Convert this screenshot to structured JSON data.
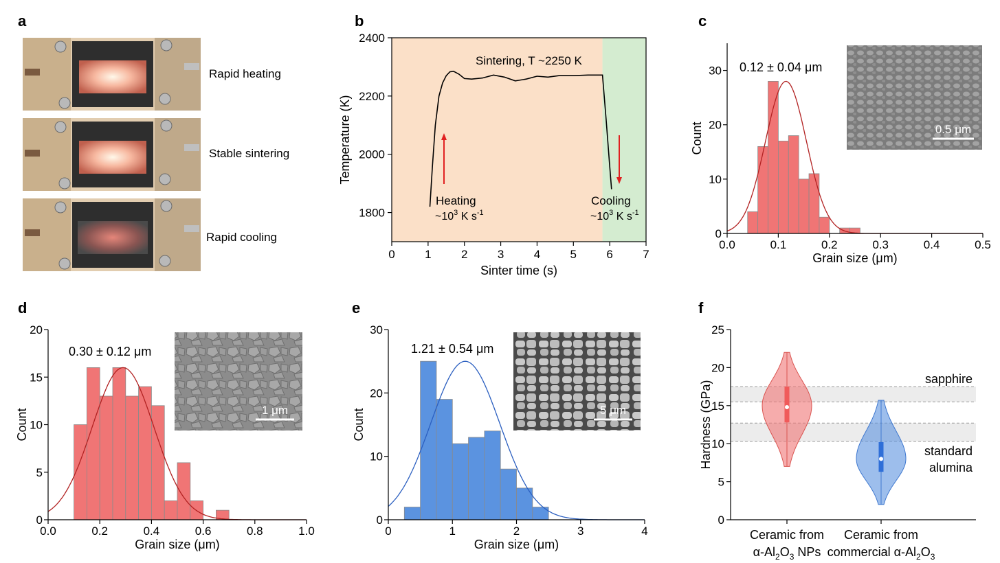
{
  "panel_labels": [
    "a",
    "b",
    "c",
    "d",
    "e",
    "f"
  ],
  "colors": {
    "red_bar": "#f07575",
    "red_line": "#b22222",
    "blue_bar": "#5b93e0",
    "blue_line": "#2b5fc0",
    "heat_bg": "#fbe0c8",
    "cool_bg": "#d4ecd0",
    "arrow": "#e02020",
    "band": "#e6e6e6"
  },
  "panel_a": {
    "photos": [
      {
        "caption": "Rapid heating",
        "glow": "bright"
      },
      {
        "caption": "Stable sintering",
        "glow": "bright"
      },
      {
        "caption": "Rapid cooling",
        "glow": "dim"
      }
    ]
  },
  "chart_data": [
    {
      "id": "b",
      "type": "line",
      "title": "",
      "xlabel": "Sinter time (s)",
      "ylabel": "Temperature (K)",
      "xlim": [
        0,
        7
      ],
      "ylim": [
        1700,
        2400
      ],
      "xticks": [
        0,
        1,
        2,
        3,
        4,
        5,
        6,
        7
      ],
      "yticks": [
        1800,
        2000,
        2200,
        2400
      ],
      "regions": [
        {
          "name": "heating",
          "from": 0,
          "to": 5.8
        },
        {
          "name": "cooling",
          "from": 5.8,
          "to": 7
        }
      ],
      "series": [
        {
          "name": "temperature",
          "x": [
            1.05,
            1.12,
            1.2,
            1.3,
            1.4,
            1.5,
            1.6,
            1.7,
            1.85,
            2.0,
            2.2,
            2.5,
            2.8,
            3.1,
            3.4,
            3.7,
            4.0,
            4.3,
            4.6,
            5.0,
            5.4,
            5.8,
            5.9,
            6.0,
            6.05
          ],
          "y": [
            1820,
            1960,
            2100,
            2200,
            2245,
            2270,
            2283,
            2285,
            2275,
            2260,
            2258,
            2262,
            2272,
            2265,
            2252,
            2258,
            2268,
            2265,
            2270,
            2270,
            2272,
            2272,
            2120,
            1960,
            1880
          ]
        }
      ],
      "annotations": {
        "sintering": "Sintering, T ~2250 K",
        "heating": "Heating",
        "cooling": "Cooling",
        "rate_prefix": "~10",
        "rate_exp": "3",
        "rate_unit": " K s",
        "rate_unit_exp": "-1"
      }
    },
    {
      "id": "c",
      "type": "bar",
      "xlabel": "Grain size (μm)",
      "ylabel": "Count",
      "xlim": [
        0,
        0.5
      ],
      "ylim": [
        0,
        35
      ],
      "xticks": [
        0.0,
        0.1,
        0.2,
        0.3,
        0.4,
        0.5
      ],
      "yticks": [
        0,
        10,
        20,
        30
      ],
      "bin_width": 0.02,
      "bin_starts": [
        0.04,
        0.06,
        0.08,
        0.1,
        0.12,
        0.14,
        0.16,
        0.18,
        0.2,
        0.22,
        0.24
      ],
      "values": [
        4,
        16,
        28,
        17,
        18,
        10,
        11,
        3,
        0,
        1,
        1
      ],
      "fit": {
        "type": "gaussian",
        "mean": 0.115,
        "sd": 0.04,
        "peak": 28
      },
      "stat_label": "0.12 ± 0.04 μm",
      "scale_bar": "0.5 μm"
    },
    {
      "id": "d",
      "type": "bar",
      "xlabel": "Grain size (μm)",
      "ylabel": "Count",
      "xlim": [
        0,
        1.0
      ],
      "ylim": [
        0,
        20
      ],
      "xticks": [
        0.0,
        0.2,
        0.4,
        0.6,
        0.8,
        1.0
      ],
      "yticks": [
        0,
        5,
        10,
        15,
        20
      ],
      "bin_width": 0.05,
      "bin_starts": [
        0.1,
        0.15,
        0.2,
        0.25,
        0.3,
        0.35,
        0.4,
        0.45,
        0.5,
        0.55,
        0.6,
        0.65
      ],
      "values": [
        10,
        16,
        13,
        16,
        13,
        14,
        12,
        2,
        6,
        2,
        0,
        1
      ],
      "fit": {
        "type": "gaussian",
        "mean": 0.29,
        "sd": 0.12,
        "peak": 16
      },
      "stat_label": "0.30 ± 0.12 μm",
      "scale_bar": "1 μm"
    },
    {
      "id": "e",
      "type": "bar",
      "xlabel": "Grain size (μm)",
      "ylabel": "Count",
      "xlim": [
        0,
        4
      ],
      "ylim": [
        0,
        30
      ],
      "xticks": [
        0,
        1,
        2,
        3,
        4
      ],
      "yticks": [
        0,
        10,
        20,
        30
      ],
      "bin_width": 0.25,
      "bin_starts": [
        0.25,
        0.5,
        0.75,
        1.0,
        1.25,
        1.5,
        1.75,
        2.0,
        2.25
      ],
      "values": [
        2,
        25,
        19,
        12,
        13,
        14,
        8,
        5,
        2
      ],
      "fit": {
        "type": "gaussian",
        "mean": 1.2,
        "sd": 0.54,
        "peak": 25
      },
      "stat_label": "1.21 ± 0.54 μm",
      "scale_bar": "5 μm"
    },
    {
      "id": "f",
      "type": "violin",
      "ylabel": "Hardness (GPa)",
      "ylim": [
        0,
        25
      ],
      "yticks": [
        0,
        5,
        10,
        15,
        20,
        25
      ],
      "categories": [
        {
          "line1": "Ceramic from",
          "line2_parts": [
            "α-Al",
            "2",
            "O",
            "3",
            " NPs"
          ],
          "min": 7,
          "max": 22,
          "median": 14.8,
          "q1": 12.8,
          "q3": 17.5,
          "mode": 15
        },
        {
          "line1": "Ceramic from",
          "line2_parts": [
            "commercial α-Al",
            "2",
            "O",
            "3"
          ],
          "min": 2,
          "max": 15.7,
          "median": 8,
          "q1": 6.3,
          "q3": 10.2,
          "mode": 8
        }
      ],
      "bands": [
        {
          "label": "sapphire",
          "from": 15.5,
          "to": 17.5
        },
        {
          "label1": "standard",
          "label2": "alumina",
          "from": 10.3,
          "to": 12.7
        }
      ]
    }
  ]
}
